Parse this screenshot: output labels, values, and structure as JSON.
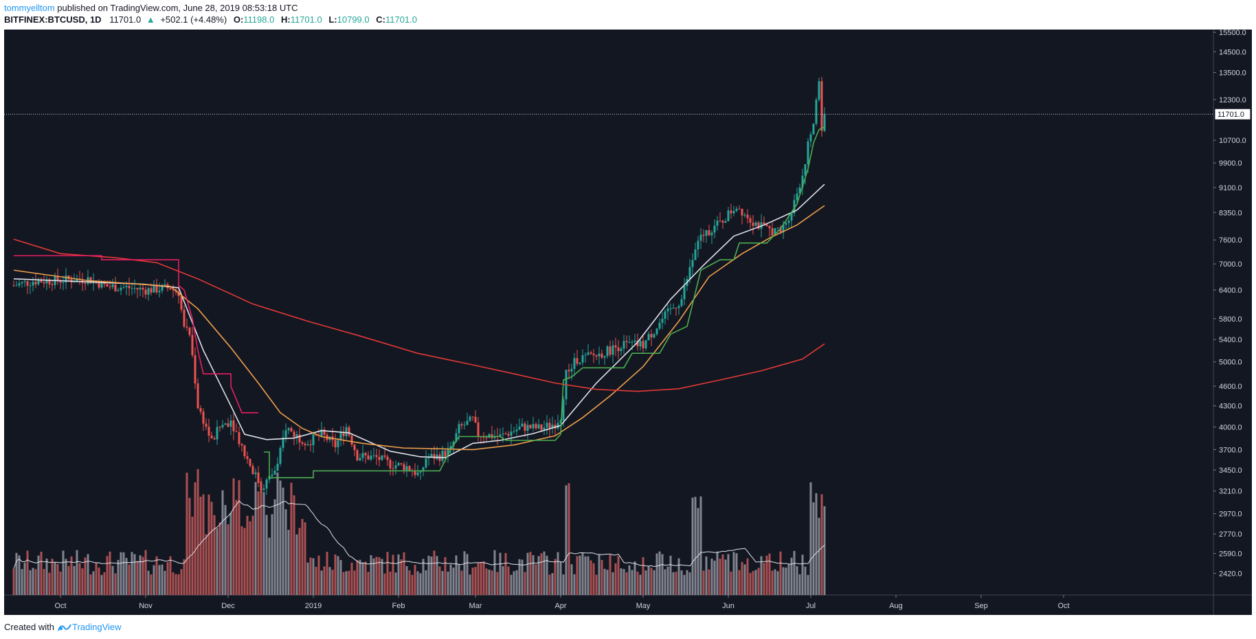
{
  "header": {
    "author": "tommyelltom",
    "published_text": " published on TradingView.com, June 28, 2019 08:53:18 UTC",
    "symbol": "BITFINEX:BTCUSD, 1D",
    "price": "11701.0",
    "change": "+502.1 (+4.48%)",
    "open_label": "O:",
    "open": "11198.0",
    "high_label": "H:",
    "high": "11701.0",
    "low_label": "L:",
    "low": "10799.0",
    "close_label": "C:",
    "close": "11701.0"
  },
  "footer": {
    "created_with": "Created with",
    "brand": "TradingView"
  },
  "colors": {
    "background": "#131722",
    "up": "#26a69a",
    "down": "#ef5350",
    "ma_white": "#e0e3eb",
    "ma_orange": "#f0a04b",
    "ma_red": "#e53935",
    "stop_green": "#4caf50",
    "stop_magenta": "#e91e63"
  },
  "chart_data": {
    "type": "candlestick",
    "title": "BITFINEX:BTCUSD, 1D",
    "y_scale": "log",
    "ylim": [
      2300,
      15500
    ],
    "y_ticks": [
      "15500.0",
      "14500.0",
      "13500.0",
      "12300.0",
      "10700.0",
      "9900.0",
      "9100.0",
      "8350.0",
      "7600.0",
      "7000.0",
      "6400.0",
      "5800.0",
      "5400.0",
      "5000.0",
      "4600.0",
      "4300.0",
      "4000.0",
      "3700.0",
      "3450.0",
      "3210.0",
      "2970.0",
      "2770.0",
      "2590.0",
      "2420.0"
    ],
    "y_tick_values": [
      15500,
      14500,
      13500,
      12300,
      10700,
      9900,
      9100,
      8350,
      7600,
      7000,
      6400,
      5800,
      5400,
      5000,
      4600,
      4300,
      4000,
      3700,
      3450,
      3210,
      2970,
      2770,
      2590,
      2420
    ],
    "x_ticks": [
      {
        "label": "Oct",
        "day": 0
      },
      {
        "label": "Nov",
        "day": 31
      },
      {
        "label": "Dec",
        "day": 61
      },
      {
        "label": "2019",
        "day": 92
      },
      {
        "label": "Feb",
        "day": 123
      },
      {
        "label": "Mar",
        "day": 151
      },
      {
        "label": "Apr",
        "day": 182
      },
      {
        "label": "May",
        "day": 212
      },
      {
        "label": "Jun",
        "day": 243
      },
      {
        "label": "Jul",
        "day": 273
      },
      {
        "label": "Aug",
        "day": 304
      },
      {
        "label": "Sep",
        "day": 335
      },
      {
        "label": "Oct",
        "day": 365
      }
    ],
    "last_price_label": "11701.0",
    "last_price": 11701,
    "price_anchors": [
      [
        -17,
        6500
      ],
      [
        -10,
        6600
      ],
      [
        0,
        6620
      ],
      [
        10,
        6650
      ],
      [
        17,
        6480
      ],
      [
        25,
        6450
      ],
      [
        31,
        6400
      ],
      [
        40,
        6450
      ],
      [
        43,
        6350
      ],
      [
        45,
        5600
      ],
      [
        47,
        5500
      ],
      [
        50,
        4300
      ],
      [
        55,
        3800
      ],
      [
        58,
        4000
      ],
      [
        62,
        4100
      ],
      [
        67,
        3650
      ],
      [
        73,
        3250
      ],
      [
        76,
        3350
      ],
      [
        79,
        3500
      ],
      [
        82,
        4000
      ],
      [
        85,
        3900
      ],
      [
        90,
        3800
      ],
      [
        95,
        3900
      ],
      [
        100,
        3750
      ],
      [
        104,
        4000
      ],
      [
        108,
        3620
      ],
      [
        115,
        3600
      ],
      [
        120,
        3520
      ],
      [
        126,
        3490
      ],
      [
        131,
        3380
      ],
      [
        133,
        3600
      ],
      [
        138,
        3620
      ],
      [
        142,
        3700
      ],
      [
        145,
        3980
      ],
      [
        150,
        4100
      ],
      [
        152,
        3900
      ],
      [
        160,
        3870
      ],
      [
        168,
        4000
      ],
      [
        175,
        3980
      ],
      [
        180,
        4050
      ],
      [
        182,
        4150
      ],
      [
        184,
        4800
      ],
      [
        188,
        5050
      ],
      [
        196,
        5130
      ],
      [
        204,
        5300
      ],
      [
        212,
        5300
      ],
      [
        220,
        5850
      ],
      [
        226,
        6200
      ],
      [
        230,
        7100
      ],
      [
        233,
        7700
      ],
      [
        240,
        8050
      ],
      [
        246,
        8550
      ],
      [
        252,
        8100
      ],
      [
        256,
        7900
      ],
      [
        262,
        7800
      ],
      [
        266,
        8400
      ],
      [
        270,
        9500
      ],
      [
        272,
        10500
      ],
      [
        274,
        11400
      ],
      [
        275,
        12400
      ],
      [
        276,
        13000
      ],
      [
        277,
        11200
      ],
      [
        278,
        11701
      ]
    ],
    "volume_scale": [
      0,
      3600
    ],
    "series": [
      {
        "name": "MA (white)",
        "color": "#e0e3eb",
        "values": [
          [
            -17,
            6650
          ],
          [
            30,
            6530
          ],
          [
            43,
            6450
          ],
          [
            52,
            5200
          ],
          [
            62,
            4300
          ],
          [
            67,
            3900
          ],
          [
            75,
            3830
          ],
          [
            85,
            3850
          ],
          [
            95,
            3950
          ],
          [
            105,
            3920
          ],
          [
            120,
            3680
          ],
          [
            131,
            3610
          ],
          [
            140,
            3600
          ],
          [
            150,
            3780
          ],
          [
            160,
            3820
          ],
          [
            172,
            3910
          ],
          [
            182,
            4020
          ],
          [
            195,
            4650
          ],
          [
            210,
            5350
          ],
          [
            222,
            6200
          ],
          [
            234,
            6970
          ],
          [
            245,
            7700
          ],
          [
            256,
            8000
          ],
          [
            268,
            8420
          ],
          [
            278,
            9200
          ]
        ]
      },
      {
        "name": "MA (orange)",
        "color": "#f0a04b",
        "values": [
          [
            -17,
            6850
          ],
          [
            10,
            6610
          ],
          [
            40,
            6480
          ],
          [
            50,
            6000
          ],
          [
            62,
            5250
          ],
          [
            72,
            4650
          ],
          [
            80,
            4200
          ],
          [
            88,
            3980
          ],
          [
            95,
            3870
          ],
          [
            110,
            3780
          ],
          [
            125,
            3720
          ],
          [
            140,
            3710
          ],
          [
            150,
            3700
          ],
          [
            165,
            3760
          ],
          [
            180,
            3880
          ],
          [
            190,
            4130
          ],
          [
            200,
            4450
          ],
          [
            212,
            4920
          ],
          [
            225,
            5750
          ],
          [
            236,
            6700
          ],
          [
            248,
            7250
          ],
          [
            258,
            7650
          ],
          [
            268,
            8000
          ],
          [
            278,
            8550
          ]
        ]
      },
      {
        "name": "MA (red)",
        "color": "#e53935",
        "values": [
          [
            -17,
            7620
          ],
          [
            0,
            7250
          ],
          [
            20,
            7150
          ],
          [
            35,
            7030
          ],
          [
            50,
            6650
          ],
          [
            70,
            6100
          ],
          [
            90,
            5750
          ],
          [
            110,
            5450
          ],
          [
            130,
            5150
          ],
          [
            150,
            4950
          ],
          [
            165,
            4800
          ],
          [
            180,
            4650
          ],
          [
            195,
            4550
          ],
          [
            210,
            4520
          ],
          [
            225,
            4560
          ],
          [
            240,
            4700
          ],
          [
            255,
            4850
          ],
          [
            270,
            5050
          ],
          [
            278,
            5320
          ]
        ]
      },
      {
        "name": "Trailing stop (green)",
        "color": "#4caf50",
        "values": [
          [
            74,
            3670
          ],
          [
            76,
            3670
          ],
          [
            76,
            3360
          ],
          [
            92,
            3360
          ],
          [
            92,
            3440
          ],
          [
            138,
            3440
          ],
          [
            142,
            3700
          ],
          [
            145,
            3870
          ],
          [
            160,
            3870
          ],
          [
            162,
            3820
          ],
          [
            180,
            3820
          ],
          [
            182,
            3900
          ],
          [
            183,
            4700
          ],
          [
            186,
            4750
          ],
          [
            190,
            4900
          ],
          [
            205,
            4900
          ],
          [
            208,
            5150
          ],
          [
            218,
            5150
          ],
          [
            222,
            5500
          ],
          [
            228,
            5650
          ],
          [
            233,
            6850
          ],
          [
            240,
            7100
          ],
          [
            245,
            7100
          ],
          [
            247,
            7520
          ],
          [
            257,
            7520
          ],
          [
            262,
            7900
          ],
          [
            268,
            8600
          ],
          [
            272,
            9700
          ],
          [
            274,
            10600
          ],
          [
            276,
            11100
          ],
          [
            278,
            11200
          ]
        ]
      },
      {
        "name": "Trailing stop (magenta)",
        "color": "#e91e63",
        "values": [
          [
            -17,
            7200
          ],
          [
            15,
            7200
          ],
          [
            15,
            7100
          ],
          [
            43,
            7100
          ],
          [
            43,
            6500
          ],
          [
            45,
            6400
          ],
          [
            48,
            5800
          ],
          [
            50,
            5200
          ],
          [
            52,
            4800
          ],
          [
            62,
            4800
          ],
          [
            62,
            4600
          ],
          [
            66,
            4200
          ],
          [
            68,
            4200
          ],
          [
            72,
            4200
          ]
        ]
      }
    ]
  }
}
